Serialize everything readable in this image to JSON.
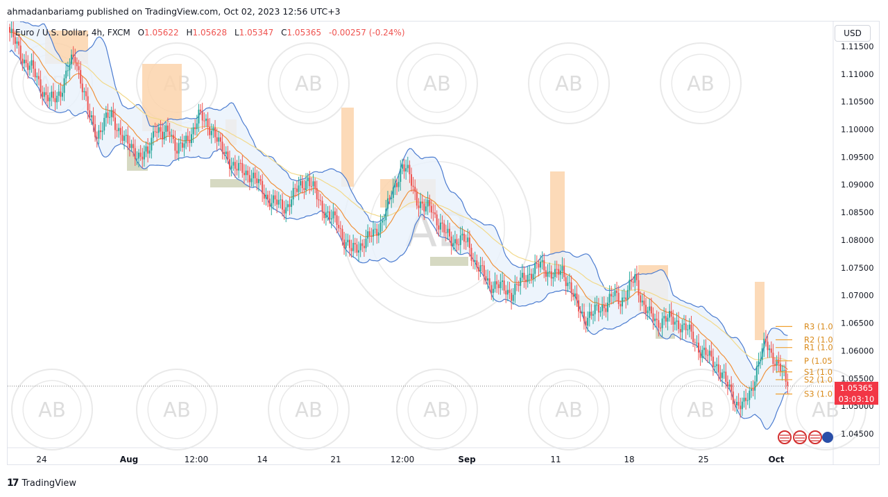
{
  "header": {
    "published_text": "ahmadanbariamg published on TradingView.com, Oct 02, 2023 12:56 UTC+3"
  },
  "legend": {
    "symbol": "Euro / U.S. Dollar, 4h, FXCM",
    "o_label": "O",
    "o_value": "1.05622",
    "h_label": "H",
    "h_value": "1.05628",
    "l_label": "L",
    "l_value": "1.05347",
    "c_label": "C",
    "c_value": "1.05365",
    "change": "-0.00257 (-0.24%)"
  },
  "currency_button": "USD",
  "last_price": {
    "value": "1.05365",
    "countdown": "03:03:10"
  },
  "watermark_text": "AB",
  "pivot_labels": [
    {
      "text": "R3 (1.0",
      "price": 1.0644
    },
    {
      "text": "R2 (1.0",
      "price": 1.062
    },
    {
      "text": "R1 (1.0",
      "price": 1.0606
    },
    {
      "text": "P (1.05",
      "price": 1.0582
    },
    {
      "text": "S1 (1.0",
      "price": 1.0562
    },
    {
      "text": "S2 (1.0",
      "price": 1.0548
    },
    {
      "text": "S3 (1.0",
      "price": 1.0522
    }
  ],
  "footer": {
    "brand": "TradingView",
    "logo": "17"
  },
  "colors": {
    "up": "#26a69a",
    "down": "#ef5350",
    "bb": "#4a7bd0",
    "bb_fill": "#e8f1fb",
    "ema_fast": "#f0913a",
    "ema_slow": "#f2d98a",
    "zone_supply": "#fbd3ab",
    "zone_demand": "#c8ccae",
    "pivot": "#f0a030"
  },
  "chart_data": {
    "type": "candlestick",
    "timeframe": "4h",
    "ylim": [
      1.0425,
      1.1195
    ],
    "y_ticks": [
      "1.11500",
      "1.11000",
      "1.10500",
      "1.10000",
      "1.09500",
      "1.09000",
      "1.08500",
      "1.08000",
      "1.07500",
      "1.07000",
      "1.06500",
      "1.06000",
      "1.05500",
      "1.05000",
      "1.04500"
    ],
    "x_ticks": [
      "24",
      "Aug",
      "12:00",
      "14",
      "21",
      "12:00",
      "Sep",
      "11",
      "18",
      "25",
      "Oct"
    ],
    "close_path": [
      [
        0,
        1.1175
      ],
      [
        4,
        1.115
      ],
      [
        8,
        1.1125
      ],
      [
        12,
        1.111
      ],
      [
        16,
        1.1085
      ],
      [
        20,
        1.106
      ],
      [
        24,
        1.105
      ],
      [
        28,
        1.107
      ],
      [
        32,
        1.111
      ],
      [
        36,
        1.113
      ],
      [
        40,
        1.108
      ],
      [
        44,
        1.102
      ],
      [
        48,
        1.099
      ],
      [
        52,
        1.1015
      ],
      [
        56,
        1.1025
      ],
      [
        60,
        1.1
      ],
      [
        64,
        1.0975
      ],
      [
        68,
        1.0965
      ],
      [
        72,
        1.095
      ],
      [
        76,
        1.0955
      ],
      [
        80,
        1.101
      ],
      [
        84,
        1.0985
      ],
      [
        88,
        1.1
      ],
      [
        92,
        1.0965
      ],
      [
        96,
        1.097
      ],
      [
        100,
        1.0995
      ],
      [
        104,
        1.1025
      ],
      [
        108,
        1.101
      ],
      [
        112,
        1.1
      ],
      [
        116,
        1.0965
      ],
      [
        120,
        1.095
      ],
      [
        124,
        1.093
      ],
      [
        128,
        1.0925
      ],
      [
        132,
        1.092
      ],
      [
        136,
        1.0905
      ],
      [
        140,
        1.0885
      ],
      [
        144,
        1.087
      ],
      [
        148,
        1.0865
      ],
      [
        152,
        1.086
      ],
      [
        156,
        1.088
      ],
      [
        160,
        1.09
      ],
      [
        164,
        1.091
      ],
      [
        168,
        1.0885
      ],
      [
        172,
        1.086
      ],
      [
        176,
        1.084
      ],
      [
        180,
        1.0835
      ],
      [
        184,
        1.08
      ],
      [
        188,
        1.078
      ],
      [
        192,
        1.079
      ],
      [
        196,
        1.08
      ],
      [
        200,
        1.081
      ],
      [
        204,
        1.083
      ],
      [
        208,
        1.086
      ],
      [
        212,
        1.09
      ],
      [
        216,
        1.0935
      ],
      [
        220,
        1.0915
      ],
      [
        224,
        1.0875
      ],
      [
        228,
        1.0855
      ],
      [
        232,
        1.086
      ],
      [
        236,
        1.083
      ],
      [
        240,
        1.081
      ],
      [
        244,
        1.08
      ],
      [
        248,
        1.08
      ],
      [
        252,
        1.0795
      ],
      [
        256,
        1.076
      ],
      [
        260,
        1.074
      ],
      [
        264,
        1.072
      ],
      [
        268,
        1.072
      ],
      [
        272,
        1.071
      ],
      [
        276,
        1.0705
      ],
      [
        280,
        1.072
      ],
      [
        284,
        1.0735
      ],
      [
        288,
        1.0745
      ],
      [
        292,
        1.0755
      ],
      [
        296,
        1.0745
      ],
      [
        300,
        1.0735
      ],
      [
        304,
        1.0745
      ],
      [
        308,
        1.072
      ],
      [
        312,
        1.068
      ],
      [
        316,
        1.066
      ],
      [
        320,
        1.0665
      ],
      [
        324,
        1.0675
      ],
      [
        328,
        1.0685
      ],
      [
        332,
        1.07
      ],
      [
        336,
        1.069
      ],
      [
        340,
        1.071
      ],
      [
        344,
        1.073
      ],
      [
        348,
        1.069
      ],
      [
        352,
        1.0665
      ],
      [
        356,
        1.065
      ],
      [
        360,
        1.066
      ],
      [
        364,
        1.0655
      ],
      [
        368,
        1.065
      ],
      [
        372,
        1.064
      ],
      [
        376,
        1.0625
      ],
      [
        380,
        1.06
      ],
      [
        384,
        1.059
      ],
      [
        388,
        1.058
      ],
      [
        392,
        1.0555
      ],
      [
        396,
        1.053
      ],
      [
        400,
        1.0505
      ],
      [
        404,
        1.05
      ],
      [
        408,
        1.053
      ],
      [
        412,
        1.058
      ],
      [
        416,
        1.0615
      ],
      [
        420,
        1.059
      ],
      [
        424,
        1.0565
      ],
      [
        428,
        1.0537
      ]
    ]
  }
}
